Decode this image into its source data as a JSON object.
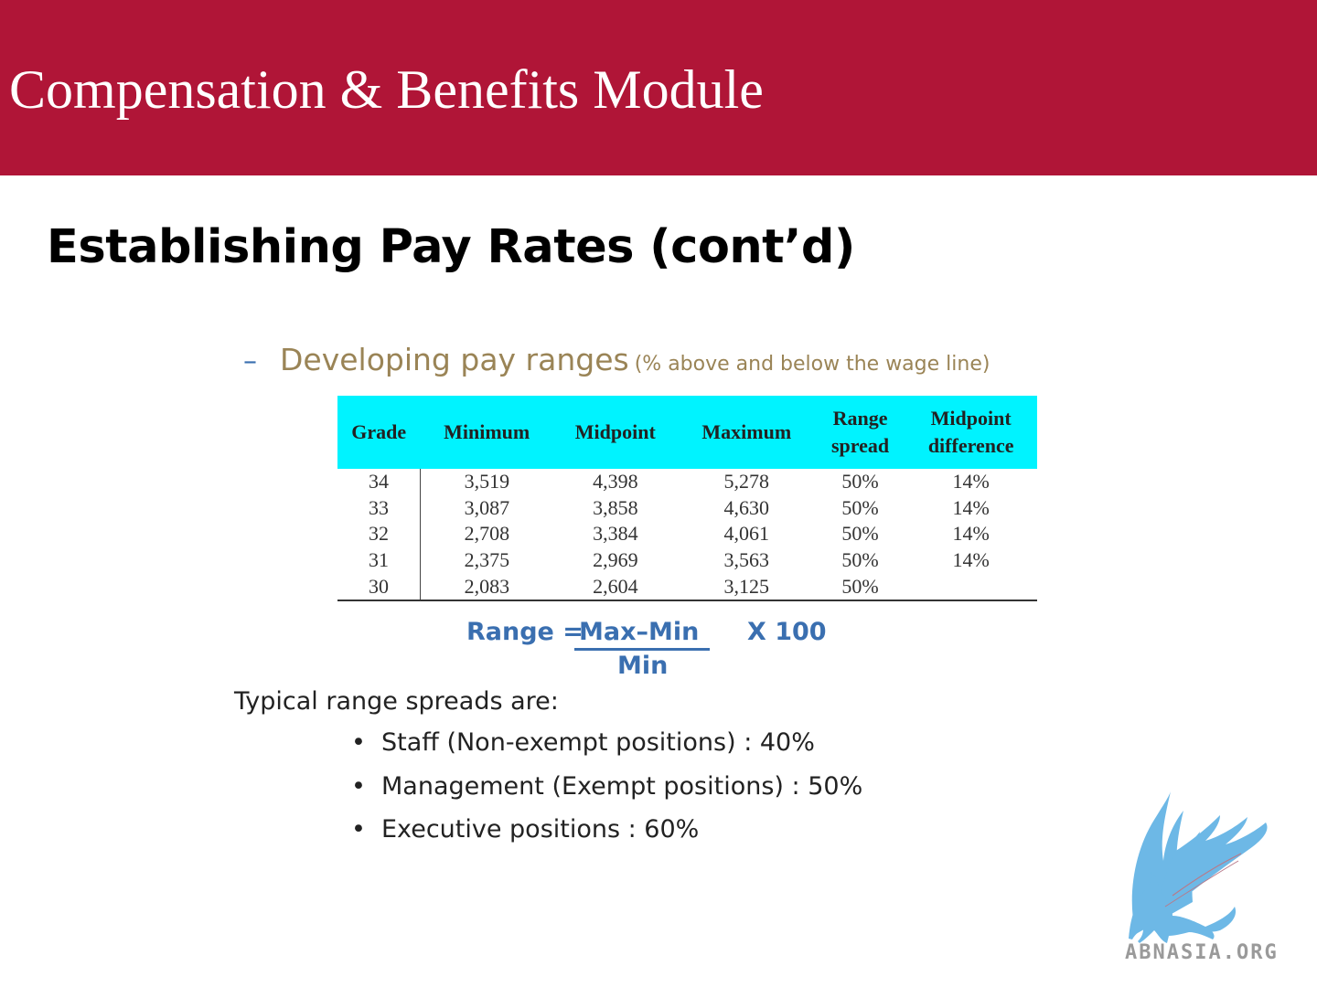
{
  "header": {
    "title": "Compensation & Benefits Module"
  },
  "slide": {
    "title": "Establishing Pay Rates (cont’d)"
  },
  "subheading": {
    "dash": "–",
    "main": "Developing pay ranges",
    "note": "(% above and below the wage line)"
  },
  "table": {
    "headers": {
      "grade": "Grade",
      "minimum": "Minimum",
      "midpoint": "Midpoint",
      "maximum": "Maximum",
      "range_spread_1": "Range",
      "range_spread_2": "spread",
      "midpoint_diff_1": "Midpoint",
      "midpoint_diff_2": "difference"
    },
    "rows": [
      {
        "grade": "34",
        "minimum": "3,519",
        "midpoint": "4,398",
        "maximum": "5,278",
        "range_spread": "50%",
        "midpoint_difference": "14%"
      },
      {
        "grade": "33",
        "minimum": "3,087",
        "midpoint": "3,858",
        "maximum": "4,630",
        "range_spread": "50%",
        "midpoint_difference": "14%"
      },
      {
        "grade": "32",
        "minimum": "2,708",
        "midpoint": "3,384",
        "maximum": "4,061",
        "range_spread": "50%",
        "midpoint_difference": "14%"
      },
      {
        "grade": "31",
        "minimum": "2,375",
        "midpoint": "2,969",
        "maximum": "3,563",
        "range_spread": "50%",
        "midpoint_difference": "14%"
      },
      {
        "grade": "30",
        "minimum": "2,083",
        "midpoint": "2,604",
        "maximum": "3,125",
        "range_spread": "50%",
        "midpoint_difference": ""
      }
    ]
  },
  "formula": {
    "lhs": "Range =",
    "numerator": "Max–Min",
    "denominator": "Min",
    "multiplier": "X 100"
  },
  "typical": {
    "intro": "Typical range spreads are:",
    "bullet_char": "•",
    "items": [
      "Staff (Non-exempt positions) : 40%",
      "Management (Exempt positions) : 50%",
      "Executive positions : 60%"
    ]
  },
  "logo": {
    "text": "ABNASIA.ORG",
    "icon": "griffin-logo-icon"
  },
  "colors": {
    "header_bg": "#b01537",
    "table_header_bg": "#00f3ff",
    "formula_blue": "#3a6fb0",
    "subheading_tan": "#9a8456",
    "logo_blue": "#6db8e6"
  }
}
